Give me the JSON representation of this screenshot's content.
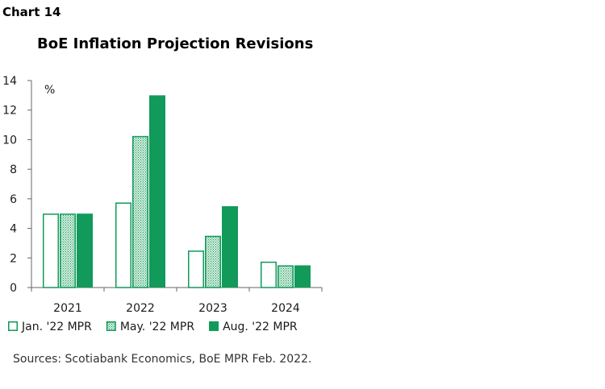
{
  "chart_label": "Chart 14",
  "chart_data": {
    "type": "bar",
    "title": "BoE Inflation Projection Revisions",
    "ylabel": "%",
    "xlabel": "",
    "categories": [
      "2021",
      "2022",
      "2023",
      "2024"
    ],
    "series": [
      {
        "name": "Jan. '22 MPR",
        "values": [
          5.0,
          5.75,
          2.5,
          1.75
        ],
        "style": "outline"
      },
      {
        "name": "May. '22 MPR",
        "values": [
          5.0,
          10.25,
          3.5,
          1.5
        ],
        "style": "hatched"
      },
      {
        "name": "Aug. '22 MPR",
        "values": [
          5.0,
          13.0,
          5.5,
          1.5
        ],
        "style": "solid"
      }
    ],
    "ylim": [
      0,
      14
    ],
    "yticks": [
      0,
      2,
      4,
      6,
      8,
      10,
      12,
      14
    ],
    "grid": false,
    "legend_position": "bottom",
    "colors": {
      "green": "#119a5a",
      "hatch_light": "#d6ede0",
      "axis": "#666666"
    }
  },
  "source": "Sources: Scotiabank Economics, BoE MPR Feb. 2022."
}
